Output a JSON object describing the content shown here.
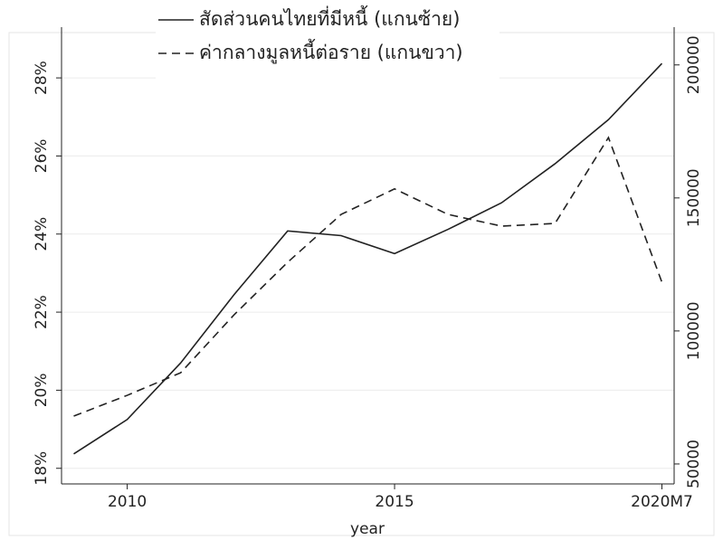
{
  "chart_data": {
    "type": "line",
    "categories": [
      null,
      "2010",
      null,
      null,
      null,
      null,
      "2015",
      null,
      null,
      null,
      null,
      "2020M7"
    ],
    "x_label": "year",
    "series": [
      {
        "name": "สัดส่วนคนไทยที่มีหนี้ (แกนซ้าย)",
        "color": "#222222",
        "dash": "solid",
        "axis": "y",
        "values": [
          18.37,
          19.25,
          20.7,
          22.45,
          24.08,
          23.96,
          23.5,
          24.12,
          24.8,
          25.8,
          26.93,
          28.37
        ]
      },
      {
        "name": "ค่ากลางมูลหนี้ต่อราย (แกนขวา)",
        "color": "#222222",
        "dash": "dashed",
        "axis": "y2",
        "values": [
          68000,
          75800,
          84300,
          106100,
          125800,
          143800,
          153400,
          143800,
          139400,
          140400,
          172700,
          118300
        ]
      }
    ],
    "ylim": [
      17.6,
      29.3
    ],
    "yticks": [
      {
        "value": 18,
        "label": "18%"
      },
      {
        "value": 20,
        "label": "20%"
      },
      {
        "value": 22,
        "label": "22%"
      },
      {
        "value": 24,
        "label": "24%"
      },
      {
        "value": 26,
        "label": "26%"
      },
      {
        "value": 28,
        "label": "28%"
      }
    ],
    "y2lim": [
      42500,
      214200
    ],
    "y2ticks": [
      50000,
      100000,
      150000,
      200000
    ],
    "grid": true
  }
}
